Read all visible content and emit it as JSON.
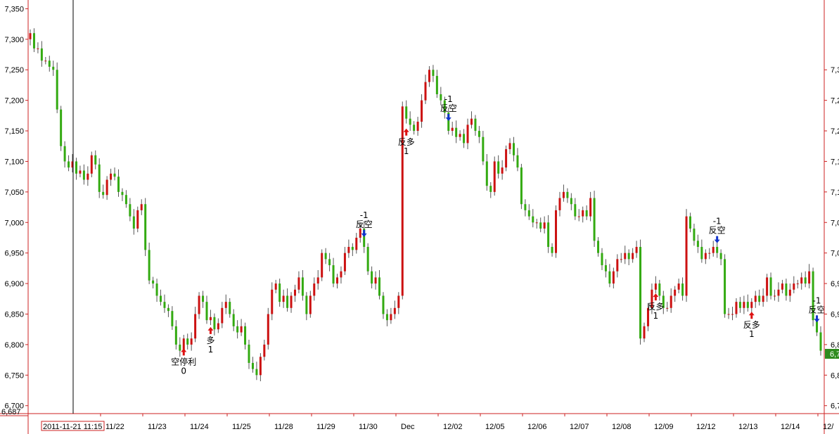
{
  "chart_data": {
    "type": "candlestick",
    "ylim": [
      6687,
      7362
    ],
    "y_ticks": [
      6700,
      6750,
      6800,
      6850,
      6900,
      6950,
      7000,
      7050,
      7100,
      7150,
      7200,
      7250,
      7300,
      7350
    ],
    "y_tick_labels": [
      "6,700",
      "6,750",
      "6,800",
      "6,850",
      "6,900",
      "6,950",
      "7,000",
      "7,050",
      "7,100",
      "7,150",
      "7,200",
      "7,250",
      "7,300",
      "7,350"
    ],
    "y_min_label": "6,687",
    "right_tick_labels": [
      "6,7",
      "6,8",
      "6,8",
      "6,9",
      "6,9",
      "7,0",
      "7,0",
      "7,1",
      "7,1",
      "7,2",
      "7,2",
      "7,3"
    ],
    "last_price_label": "6,7",
    "x_date_labels": [
      "11/22",
      "11/23",
      "11/24",
      "11/25",
      "11/28",
      "11/29",
      "11/30",
      "Dec",
      "12/02",
      "12/05",
      "12/06",
      "12/07",
      "12/08",
      "12/09",
      "12/12",
      "12/13",
      "12/14",
      "12/"
    ],
    "cursor_label": "2011-11-21  11:15",
    "colors": {
      "up": "#cc1111",
      "down": "#33aa11",
      "axis": "#cc2222",
      "buy_arrow": "#dd1111",
      "sell_arrow": "#1133cc"
    },
    "candles_close": [
      7310,
      7285,
      7285,
      7265,
      7265,
      7255,
      7250,
      7185,
      7125,
      7100,
      7090,
      7100,
      7080,
      7085,
      7070,
      7080,
      7110,
      7095,
      7050,
      7045,
      7070,
      7080,
      7075,
      7050,
      7045,
      7030,
      7010,
      6990,
      7020,
      7030,
      6955,
      6905,
      6900,
      6880,
      6870,
      6860,
      6855,
      6830,
      6800,
      6790,
      6810,
      6800,
      6810,
      6850,
      6880,
      6870,
      6840,
      6845,
      6825,
      6835,
      6860,
      6870,
      6850,
      6830,
      6820,
      6830,
      6800,
      6770,
      6760,
      6750,
      6780,
      6800,
      6850,
      6890,
      6900,
      6870,
      6880,
      6860,
      6880,
      6890,
      6910,
      6880,
      6850,
      6880,
      6900,
      6910,
      6950,
      6940,
      6930,
      6900,
      6910,
      6920,
      6950,
      6960,
      6955,
      6975,
      6990,
      6960,
      6920,
      6900,
      6910,
      6880,
      6850,
      6840,
      6850,
      6860,
      6880,
      7190,
      7170,
      7160,
      7150,
      7165,
      7200,
      7230,
      7250,
      7240,
      7210,
      7200,
      7180,
      7150,
      7155,
      7140,
      7145,
      7130,
      7160,
      7170,
      7150,
      7140,
      7100,
      7060,
      7050,
      7100,
      7080,
      7090,
      7120,
      7130,
      7110,
      7090,
      7030,
      7020,
      7010,
      7000,
      7000,
      6990,
      7000,
      6960,
      6950,
      7020,
      7040,
      7050,
      7040,
      7030,
      7010,
      7010,
      7020,
      7010,
      7040,
      6970,
      6950,
      6930,
      6920,
      6900,
      6920,
      6940,
      6940,
      6950,
      6940,
      6950,
      6960,
      6810,
      6830,
      6860,
      6890,
      6900,
      6880,
      6860,
      6860,
      6880,
      6890,
      6900,
      6880,
      7010,
      6990,
      6970,
      6960,
      6940,
      6950,
      6950,
      6960,
      6950,
      6940,
      6850,
      6850,
      6850,
      6870,
      6860,
      6870,
      6860,
      6870,
      6880,
      6870,
      6880,
      6910,
      6880,
      6880,
      6890,
      6900,
      6880,
      6890,
      6900,
      6900,
      6910,
      6900,
      6920,
      6840,
      6820,
      6790
    ],
    "signals": [
      {
        "label": "空停利",
        "value": "0",
        "dir": "up"
      },
      {
        "label": "多",
        "value": "1",
        "dir": "up"
      },
      {
        "label": "反空",
        "value": "-1",
        "dir": "down"
      },
      {
        "label": "反多",
        "value": "1",
        "dir": "up"
      },
      {
        "label": "反空",
        "value": "-1",
        "dir": "down"
      },
      {
        "label": "反多",
        "value": "1",
        "dir": "up"
      },
      {
        "label": "反空",
        "value": "-1",
        "dir": "down"
      },
      {
        "label": "反多",
        "value": "1",
        "dir": "up"
      },
      {
        "label": "反空",
        "value": "-1",
        "dir": "down"
      }
    ]
  }
}
